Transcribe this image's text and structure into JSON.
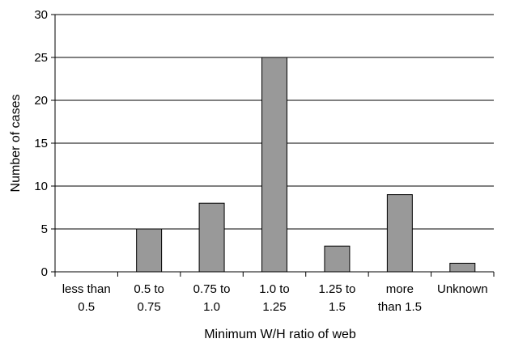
{
  "chart_data": {
    "type": "bar",
    "title": "",
    "xlabel": "Minimum W/H ratio of web",
    "ylabel": "Number of cases",
    "ylim": [
      0,
      30
    ],
    "yticks": [
      0,
      5,
      10,
      15,
      20,
      25,
      30
    ],
    "grid": true,
    "categories": [
      [
        "less than",
        "0.5"
      ],
      [
        "0.5 to",
        "0.75"
      ],
      [
        "0.75 to",
        "1.0"
      ],
      [
        "1.0 to",
        "1.25"
      ],
      [
        "1.25 to",
        "1.5"
      ],
      [
        "more",
        "than 1.5"
      ],
      [
        "Unknown"
      ]
    ],
    "values": [
      0,
      5,
      8,
      25,
      3,
      9,
      1
    ],
    "colors": {
      "bar_fill": "#999999",
      "bar_stroke": "#000000",
      "grid": "#000000",
      "axis": "#000000"
    }
  }
}
